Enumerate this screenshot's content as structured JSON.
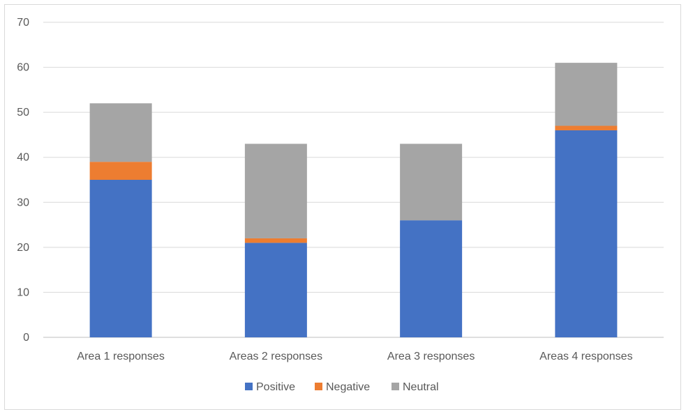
{
  "chart_data": {
    "type": "bar",
    "stacked": true,
    "title": "",
    "xlabel": "",
    "ylabel": "",
    "categories": [
      "Area 1 responses",
      "Areas 2 responses",
      "Area 3 responses",
      "Areas 4 responses"
    ],
    "series": [
      {
        "name": "Positive",
        "color": "#4472c4",
        "values": [
          35,
          21,
          26,
          46
        ]
      },
      {
        "name": "Negative",
        "color": "#ed7d31",
        "values": [
          4,
          1,
          0,
          1
        ]
      },
      {
        "name": "Neutral",
        "color": "#a5a5a5",
        "values": [
          13,
          21,
          17,
          14
        ]
      }
    ],
    "ylim": [
      0,
      70
    ],
    "yticks": [
      "0",
      "10",
      "20",
      "30",
      "40",
      "50",
      "60",
      "70"
    ],
    "grid": true,
    "legend_position": "bottom"
  }
}
